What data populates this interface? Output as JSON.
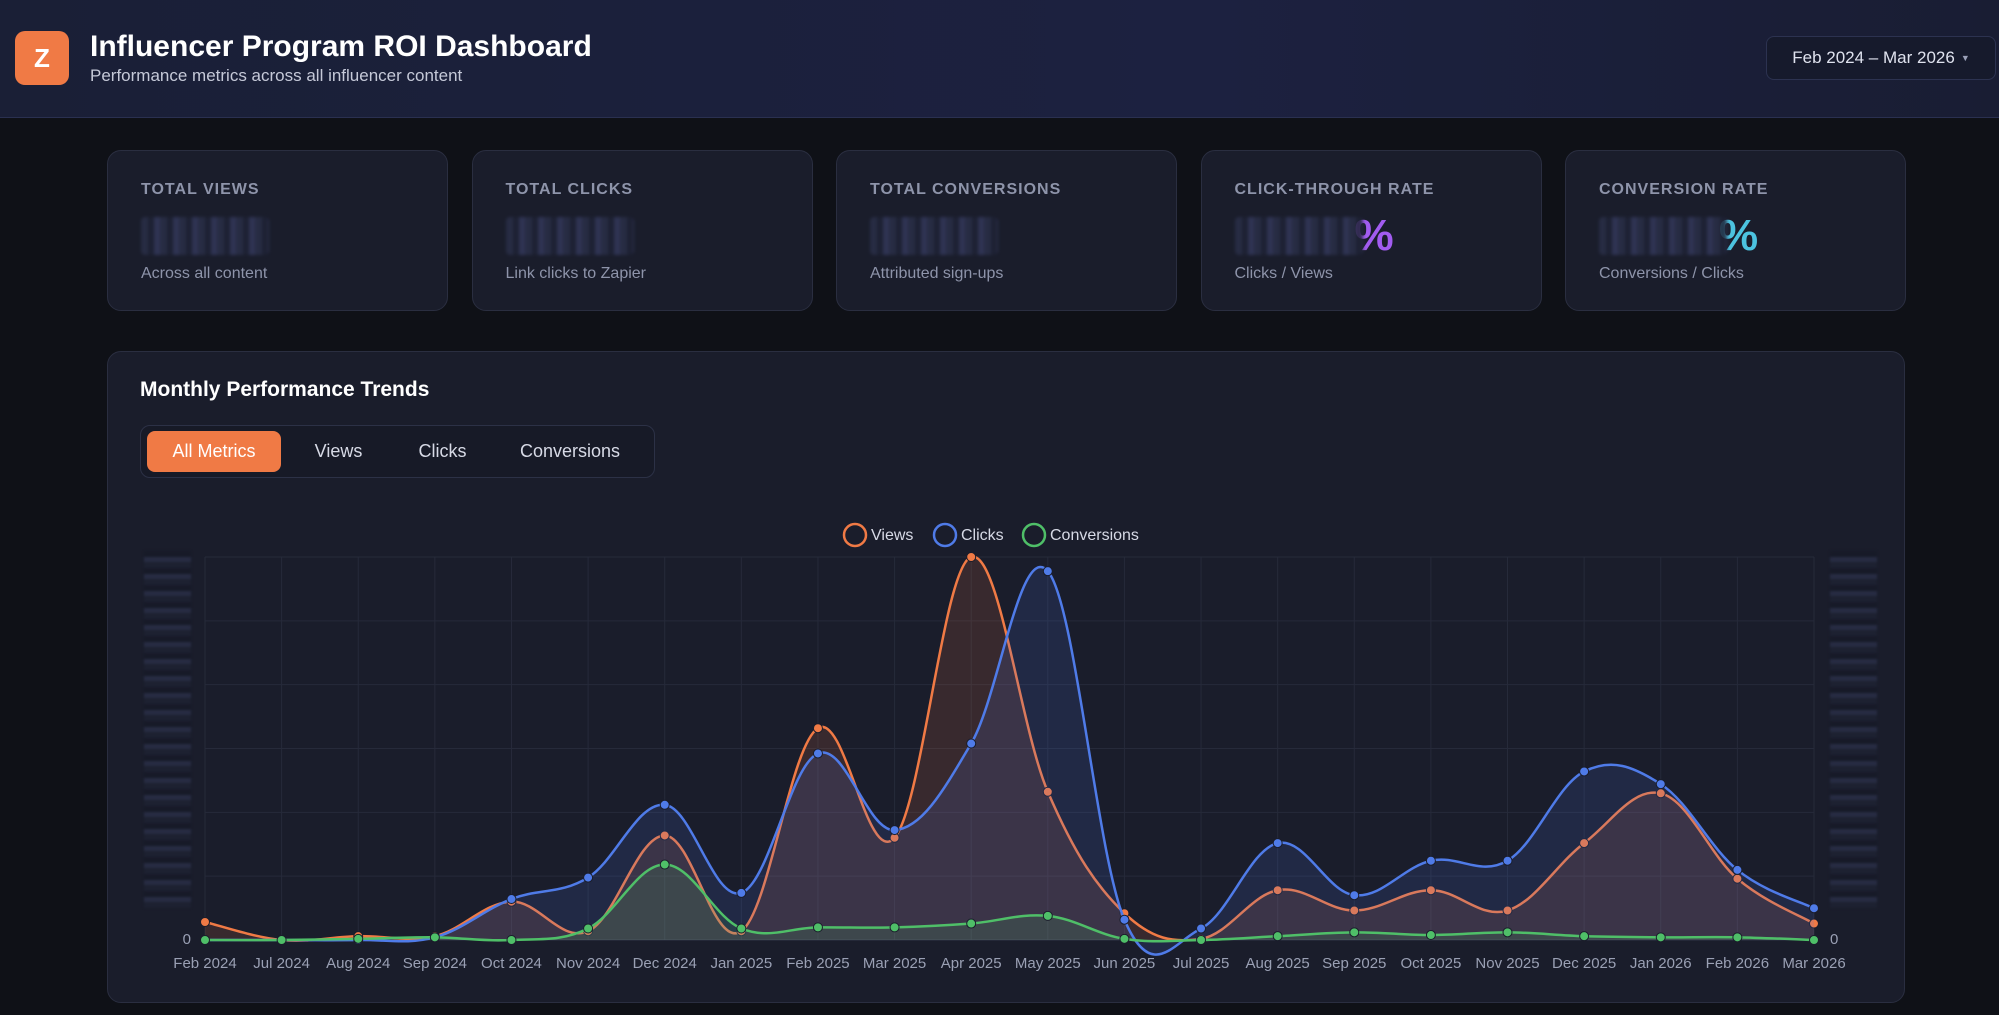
{
  "header": {
    "logo": "Z",
    "title": "Influencer Program ROI Dashboard",
    "subtitle": "Performance metrics across all influencer content",
    "date_range": "Feb 2024 – Mar 2026"
  },
  "kpis": [
    {
      "label": "TOTAL VIEWS",
      "note": "Across all content"
    },
    {
      "label": "TOTAL CLICKS",
      "note": "Link clicks to Zapier"
    },
    {
      "label": "TOTAL CONVERSIONS",
      "note": "Attributed sign-ups"
    },
    {
      "label": "CLICK-THROUGH RATE",
      "suffix": "%",
      "suffix_color": "#a25cf0",
      "note": "Clicks / Views"
    },
    {
      "label": "CONVERSION RATE",
      "suffix": "%",
      "suffix_color": "#4cc3e0",
      "note": "Conversions / Clicks"
    }
  ],
  "chart_data": {
    "type": "line",
    "title": "Monthly Performance Trends",
    "tabs": [
      "All Metrics",
      "Views",
      "Clicks",
      "Conversions"
    ],
    "categories": [
      "Feb 2024",
      "Jul 2024",
      "Aug 2024",
      "Sep 2024",
      "Oct 2024",
      "Nov 2024",
      "Dec 2024",
      "Jan 2025",
      "Feb 2025",
      "Mar 2025",
      "Apr 2025",
      "May 2025",
      "Jun 2025",
      "Jul 2025",
      "Aug 2025",
      "Sep 2025",
      "Oct 2025",
      "Nov 2025",
      "Dec 2025",
      "Jan 2026",
      "Feb 2026",
      "Mar 2026"
    ],
    "series": [
      {
        "name": "Views",
        "color": "#f07a45",
        "values": [
          4.7,
          0,
          1,
          1,
          10,
          2.3,
          27.3,
          2.3,
          55.3,
          26.7,
          100,
          38.7,
          7,
          0.3,
          13,
          7.7,
          13,
          7.7,
          25.3,
          38.3,
          16,
          4.3
        ]
      },
      {
        "name": "Clicks",
        "color": "#4f7be8",
        "axis": "y2",
        "values": [
          0,
          0,
          0,
          0.7,
          10.7,
          16.3,
          35.3,
          12.3,
          48.7,
          28.7,
          51.3,
          96.3,
          5.3,
          3,
          25.3,
          11.7,
          20.7,
          20.7,
          44,
          40.7,
          18.3,
          8.3
        ]
      },
      {
        "name": "Conversions",
        "color": "#4fbf68",
        "axis": "y2",
        "values": [
          0,
          0,
          0.3,
          0.7,
          0,
          3,
          19.7,
          3,
          3.3,
          3.3,
          4.3,
          6.3,
          0.3,
          0,
          1,
          2,
          1.3,
          2,
          1,
          0.7,
          0.7,
          0
        ]
      }
    ],
    "ylim": [
      0,
      100
    ],
    "yticks": [
      0
    ],
    "y2lim": [
      0,
      100
    ],
    "y2ticks": [
      0
    ],
    "grid": true,
    "smooth": true,
    "fill": true,
    "legend": "top"
  }
}
